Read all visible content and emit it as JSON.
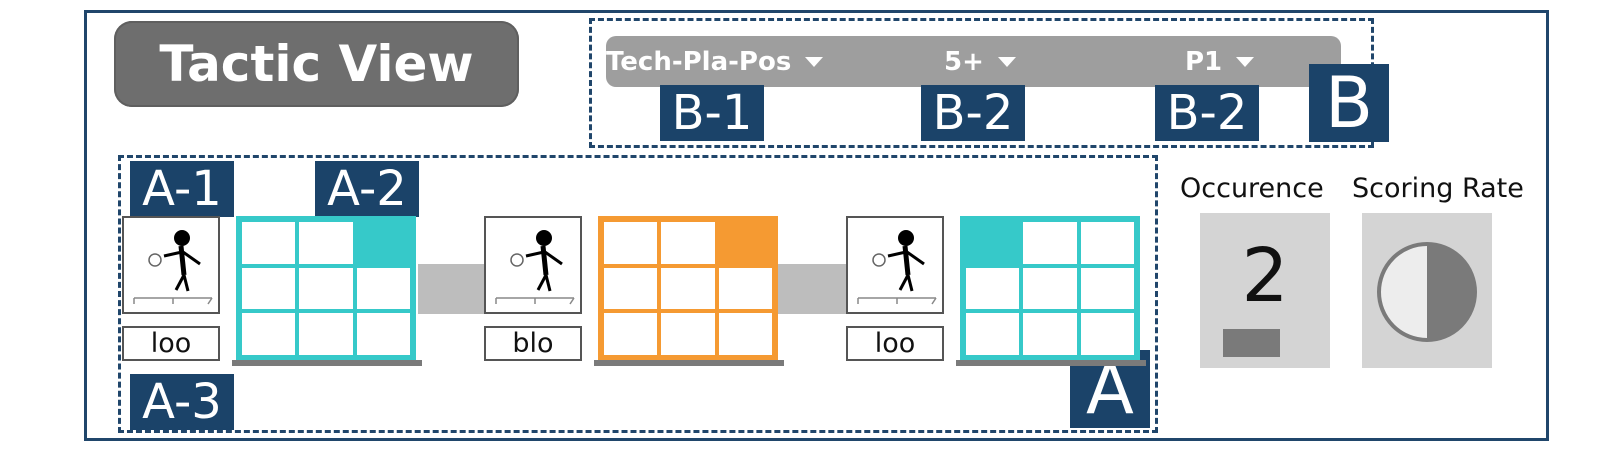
{
  "title": "Tactic View",
  "filters": [
    {
      "label": "Tech-Pla-Pos"
    },
    {
      "label": "5+"
    },
    {
      "label": "P1"
    }
  ],
  "callouts": {
    "a": "A",
    "a1": "A-1",
    "a2": "A-2",
    "a3": "A-3",
    "b": "B",
    "b1": "B-1",
    "b2_first": "B-2",
    "b2_second": "B-2"
  },
  "strokes": [
    {
      "technique": "loo",
      "zone_color": "#36c9c9",
      "highlight_cell": 2
    },
    {
      "technique": "blo",
      "zone_color": "#f59a32",
      "highlight_cell": 2
    },
    {
      "technique": "loo",
      "zone_color": "#36c9c9",
      "highlight_cell": 0
    }
  ],
  "stats": {
    "occurrence_label": "Occurence",
    "occurrence_value": "2",
    "scoring_rate_label": "Scoring Rate",
    "scoring_rate": 0.5
  },
  "colors": {
    "accent": "#1b4369",
    "title_bg": "#6e6e6e",
    "filter_bg": "#9e9e9e",
    "stat_bg": "#d4d4d4"
  }
}
